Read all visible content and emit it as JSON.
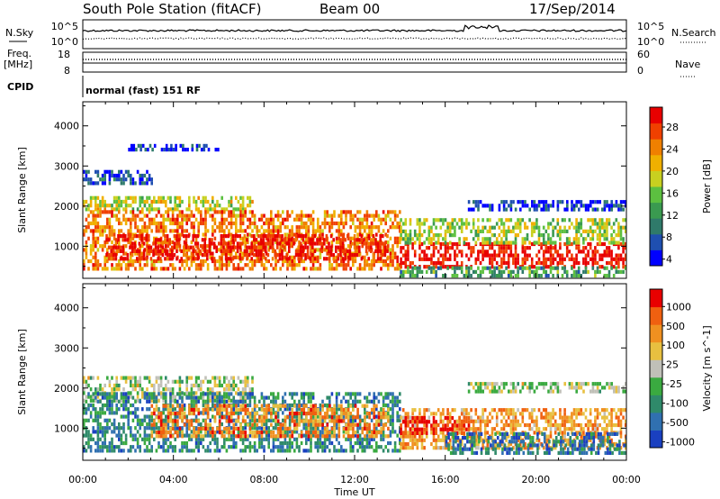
{
  "header": {
    "title": "South Pole Station (fitACF)",
    "beam": "Beam 00",
    "date": "17/Sep/2014"
  },
  "noise_panel": {
    "left_label": "N.Sky",
    "right_label": "N.Search",
    "left_ticks": [
      "10^5",
      "10^0"
    ],
    "right_ticks": [
      "10^5",
      "10^0"
    ]
  },
  "freq_panel": {
    "left_label_1": "Freq.",
    "left_label_2": "[MHz]",
    "right_label": "Nave",
    "left_ticks": [
      "18",
      "8"
    ],
    "right_ticks": [
      "60",
      "0"
    ]
  },
  "cpid_panel": {
    "label": "CPID",
    "value": "normal (fast) 151 RF"
  },
  "chart_data": [
    {
      "type": "heatmap",
      "quantity": "Power",
      "ylabel": "Slant Range [km]",
      "xlabel": "",
      "xlim": [
        "00:00",
        "24:00"
      ],
      "ylim": [
        200,
        4600
      ],
      "yticks": [
        "4000",
        "3000",
        "2000",
        "1000"
      ],
      "colorbar_label": "Power [dB]",
      "colorbar_ticks": [
        "28",
        "24",
        "20",
        "16",
        "12",
        "8",
        "4"
      ],
      "colorbar_colors": [
        "#0000ff",
        "#1f4fb0",
        "#2f7a6a",
        "#3a9a50",
        "#5cc040",
        "#c8d020",
        "#f0b000",
        "#f08000",
        "#f04000",
        "#e80000"
      ],
      "regions": [
        {
          "t_start": 0.0,
          "t_end": 7.5,
          "range_lo": 1900,
          "range_hi": 2250,
          "level": 0.55
        },
        {
          "t_start": 0.0,
          "t_end": 3.0,
          "range_lo": 2550,
          "range_hi": 2900,
          "level": 0.15
        },
        {
          "t_start": 2.0,
          "t_end": 6.0,
          "range_lo": 3450,
          "range_hi": 3550,
          "level": 0.1
        },
        {
          "t_start": 0.0,
          "t_end": 14.0,
          "range_lo": 400,
          "range_hi": 1900,
          "level": 0.75
        },
        {
          "t_start": 1.0,
          "t_end": 13.5,
          "range_lo": 700,
          "range_hi": 1300,
          "level": 0.95
        },
        {
          "t_start": 14.0,
          "t_end": 24.0,
          "range_lo": 500,
          "range_hi": 1100,
          "level": 0.97
        },
        {
          "t_start": 14.0,
          "t_end": 24.0,
          "range_lo": 1100,
          "range_hi": 1700,
          "level": 0.5
        },
        {
          "t_start": 17.0,
          "t_end": 24.0,
          "range_lo": 1900,
          "range_hi": 2150,
          "level": 0.1
        },
        {
          "t_start": 14.0,
          "t_end": 24.0,
          "range_lo": 250,
          "range_hi": 500,
          "level": 0.35
        }
      ]
    },
    {
      "type": "heatmap",
      "quantity": "Velocity",
      "ylabel": "Slant Range [km]",
      "xlabel": "Time UT",
      "xlim": [
        "00:00",
        "24:00"
      ],
      "ylim": [
        200,
        4600
      ],
      "xticks": [
        "00:00",
        "04:00",
        "08:00",
        "12:00",
        "16:00",
        "20:00",
        "00:00"
      ],
      "yticks": [
        "4000",
        "3000",
        "2000",
        "1000"
      ],
      "colorbar_label": "Velocity [m s^-1]",
      "colorbar_ticks": [
        "1000",
        "500",
        "100",
        "25",
        "-25",
        "-100",
        "-500",
        "-1000"
      ],
      "colorbar_colors": [
        "#1a40c0",
        "#3070b0",
        "#2f8a6a",
        "#3aaa40",
        "#c0c0b8",
        "#e8c040",
        "#f09020",
        "#f06010",
        "#e80000"
      ],
      "regions": [
        {
          "t_start": 0.0,
          "t_end": 7.5,
          "range_lo": 1700,
          "range_hi": 2300,
          "level": 0.5
        },
        {
          "t_start": 0.0,
          "t_end": 14.0,
          "range_lo": 400,
          "range_hi": 1900,
          "level": 0.25
        },
        {
          "t_start": 3.0,
          "t_end": 13.5,
          "range_lo": 800,
          "range_hi": 1600,
          "level": 0.75
        },
        {
          "t_start": 14.0,
          "t_end": 24.0,
          "range_lo": 500,
          "range_hi": 1500,
          "level": 0.7
        },
        {
          "t_start": 14.0,
          "t_end": 17.0,
          "range_lo": 900,
          "range_hi": 1300,
          "level": 0.95
        },
        {
          "t_start": 16.0,
          "t_end": 24.0,
          "range_lo": 400,
          "range_hi": 900,
          "level": 0.2
        },
        {
          "t_start": 17.0,
          "t_end": 24.0,
          "range_lo": 1900,
          "range_hi": 2150,
          "level": 0.5
        }
      ]
    }
  ]
}
